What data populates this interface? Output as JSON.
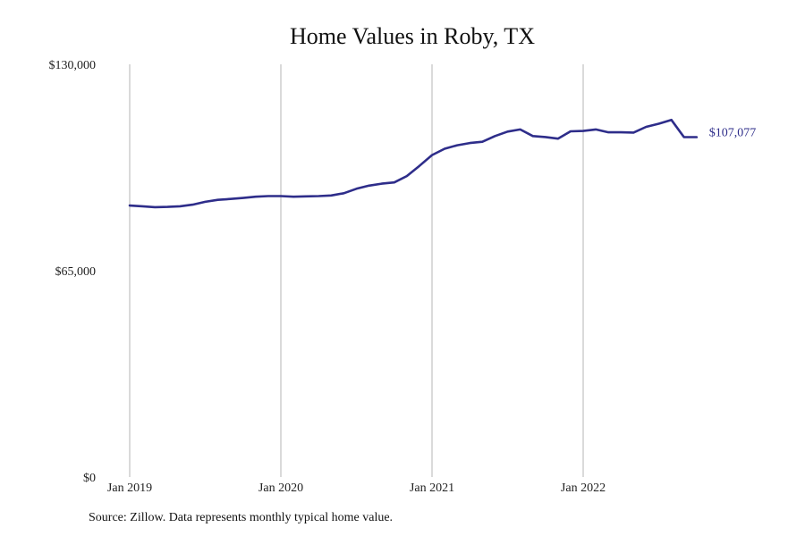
{
  "chart_data": {
    "type": "line",
    "title": "Home Values in Roby, TX",
    "source": "Source: Zillow. Data represents monthly typical home value.",
    "xlabel": "",
    "ylabel": "",
    "ylim": [
      0,
      130000
    ],
    "y_ticks": [
      {
        "value": 0,
        "label": "$0"
      },
      {
        "value": 65000,
        "label": "$65,000"
      },
      {
        "value": 130000,
        "label": "$130,000"
      }
    ],
    "x_ticks": [
      {
        "date": "2019-01",
        "label": "Jan 2019"
      },
      {
        "date": "2020-01",
        "label": "Jan 2020"
      },
      {
        "date": "2021-01",
        "label": "Jan 2021"
      },
      {
        "date": "2022-01",
        "label": "Jan 2022"
      }
    ],
    "xlim": [
      "2019-01",
      "2022-11"
    ],
    "grid": {
      "x": true,
      "y": false
    },
    "line_color": "#2e2d8a",
    "end_label": "$107,077",
    "series": [
      {
        "x": [
          "2019-01",
          "2019-02",
          "2019-03",
          "2019-04",
          "2019-05",
          "2019-06",
          "2019-07",
          "2019-08",
          "2019-09",
          "2019-10",
          "2019-11",
          "2019-12",
          "2020-01",
          "2020-02",
          "2020-03",
          "2020-04",
          "2020-05",
          "2020-06",
          "2020-07",
          "2020-08",
          "2020-09",
          "2020-10",
          "2020-11",
          "2020-12",
          "2021-01",
          "2021-02",
          "2021-03",
          "2021-04",
          "2021-05",
          "2021-06",
          "2021-07",
          "2021-08",
          "2021-09",
          "2021-10",
          "2021-11",
          "2021-12",
          "2022-01",
          "2022-02",
          "2022-03",
          "2022-04",
          "2022-05",
          "2022-06",
          "2022-07",
          "2022-08",
          "2022-09",
          "2022-10"
        ],
        "values": [
          85500,
          85300,
          85000,
          85100,
          85300,
          85800,
          86700,
          87300,
          87600,
          87900,
          88300,
          88500,
          88500,
          88300,
          88400,
          88500,
          88700,
          89400,
          90800,
          91800,
          92400,
          92800,
          94800,
          98000,
          101400,
          103400,
          104500,
          105200,
          105600,
          107400,
          108800,
          109500,
          107400,
          107100,
          106600,
          108900,
          109000,
          109500,
          108600,
          108600,
          108500,
          110300,
          111300,
          112500,
          107077,
          107077
        ]
      }
    ]
  }
}
